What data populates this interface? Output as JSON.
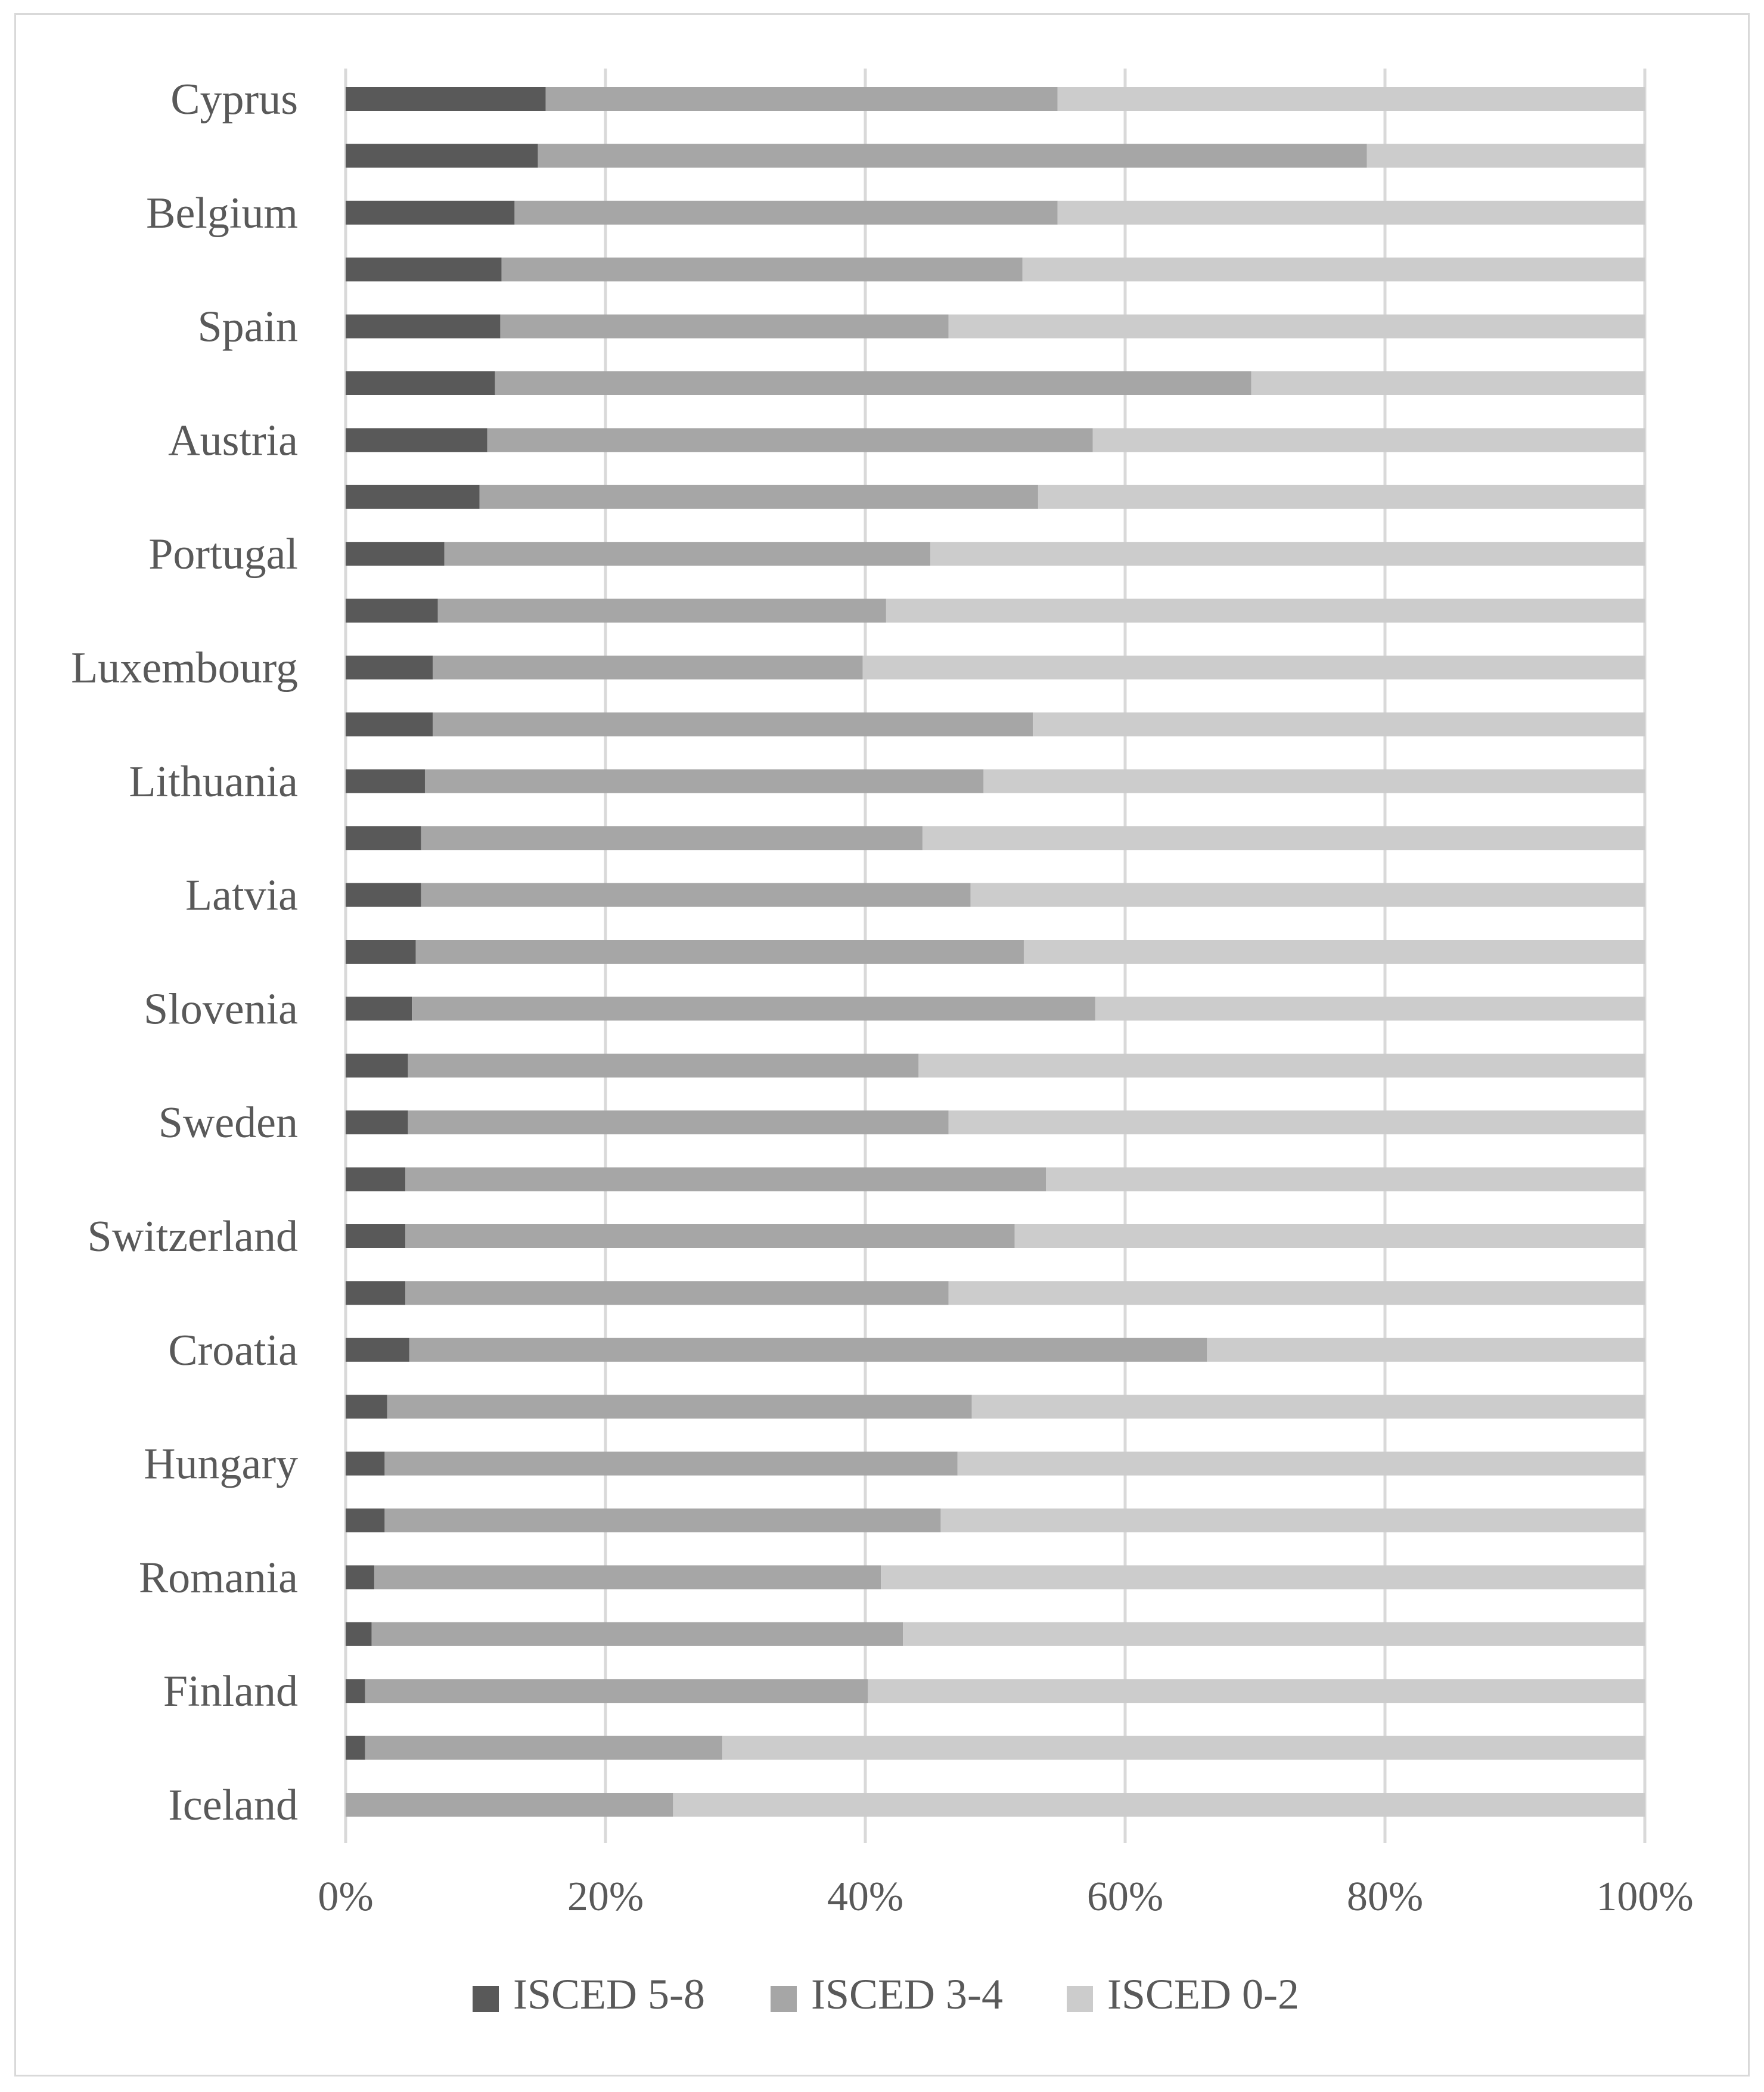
{
  "chart_data": {
    "type": "bar",
    "orientation": "horizontal",
    "stacked": "percent",
    "title": "",
    "xlabel": "",
    "ylabel": "",
    "xlim": [
      0,
      100
    ],
    "x_ticks": [
      "0%",
      "20%",
      "40%",
      "60%",
      "80%",
      "100%"
    ],
    "grid": true,
    "legend": "bottom",
    "categories": [
      "Cyprus",
      "",
      "Belgium",
      "",
      "Spain",
      "",
      "Austria",
      "",
      "Portugal",
      "",
      "Luxembourg",
      "",
      "Lithuania",
      "",
      "Latvia",
      "",
      "Slovenia",
      "",
      "Sweden",
      "",
      "Switzerland",
      "",
      "Croatia",
      "",
      "Hungary",
      "",
      "Romania",
      "",
      "Finland",
      "",
      "Iceland"
    ],
    "series": [
      {
        "name": "ISCED 5-8",
        "color": "#595959",
        "values": [
          15.4,
          14.8,
          13.0,
          12.0,
          11.9,
          11.5,
          10.9,
          10.3,
          7.6,
          7.1,
          6.7,
          6.7,
          6.1,
          5.8,
          5.8,
          5.4,
          5.1,
          4.8,
          4.8,
          4.6,
          4.6,
          4.6,
          4.9,
          3.2,
          3.0,
          3.0,
          2.2,
          2.0,
          1.5,
          1.5,
          0.0
        ]
      },
      {
        "name": "ISCED 3-4",
        "color": "#a6a6a6",
        "values": [
          39.4,
          63.8,
          41.8,
          40.1,
          34.5,
          58.2,
          46.6,
          43.0,
          37.4,
          34.5,
          33.1,
          46.2,
          43.0,
          38.6,
          42.3,
          46.8,
          52.6,
          39.3,
          41.6,
          49.3,
          46.9,
          41.8,
          61.4,
          45.0,
          44.1,
          42.8,
          39.0,
          40.9,
          38.7,
          27.5,
          25.2
        ]
      },
      {
        "name": "ISCED 0-2",
        "color": "#cccccc",
        "values": [
          45.2,
          21.4,
          45.2,
          47.9,
          53.6,
          30.3,
          42.5,
          46.7,
          55.0,
          58.4,
          60.2,
          47.1,
          50.9,
          55.6,
          51.9,
          47.8,
          42.3,
          55.9,
          53.6,
          46.1,
          48.5,
          53.6,
          33.7,
          51.8,
          52.9,
          54.2,
          58.8,
          57.1,
          59.8,
          71.0,
          74.8
        ]
      }
    ]
  }
}
